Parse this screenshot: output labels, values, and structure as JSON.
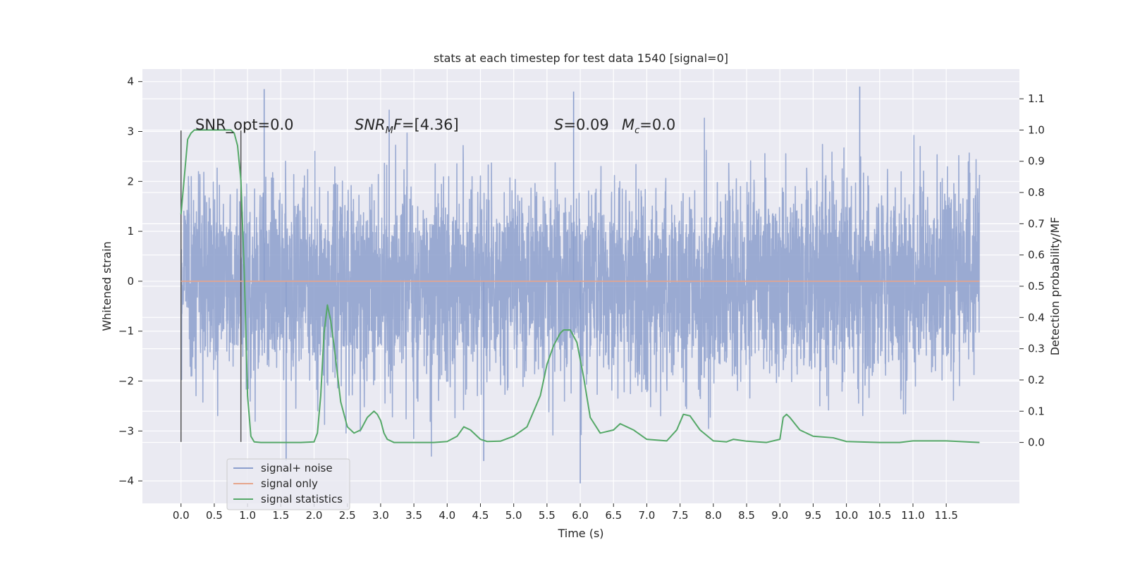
{
  "chart_data": {
    "type": "line",
    "title": "stats at each timestep for test data 1540 [signal=0]",
    "xlabel": "Time (s)",
    "ylabel": "Whitened strain",
    "y2label": "Detection probability/MF",
    "xlim": [
      -0.58,
      12.6
    ],
    "ylim": [
      -4.45,
      4.25
    ],
    "y2lim": [
      -0.195,
      1.195
    ],
    "grid": true,
    "legend_position": "lower-left",
    "x_ticks": [
      0.0,
      0.5,
      1.0,
      1.5,
      2.0,
      2.5,
      3.0,
      3.5,
      4.0,
      4.5,
      5.0,
      5.5,
      6.0,
      6.5,
      7.0,
      7.5,
      8.0,
      8.5,
      9.0,
      9.5,
      10.0,
      10.5,
      11.0,
      11.5
    ],
    "x_tick_labels": [
      "0.0",
      "0.5",
      "1.0",
      "1.5",
      "2.0",
      "2.5",
      "3.0",
      "3.5",
      "4.0",
      "4.5",
      "5.0",
      "5.5",
      "6.0",
      "6.5",
      "7.0",
      "7.5",
      "8.0",
      "8.5",
      "9.0",
      "9.5",
      "10.0",
      "10.5",
      "11.0",
      "11.5"
    ],
    "y_ticks": [
      4,
      3,
      2,
      1,
      0,
      -1,
      -2,
      -3,
      -4
    ],
    "y_tick_labels": [
      "4",
      "3",
      "2",
      "1",
      "0",
      "−1",
      "−2",
      "−3",
      "−4"
    ],
    "y2_ticks": [
      1.1,
      1.0,
      0.9,
      0.8,
      0.7,
      0.6,
      0.5,
      0.4,
      0.3,
      0.2,
      0.1,
      0.0
    ],
    "y2_tick_labels": [
      "1.1",
      "1.0",
      "0.9",
      "0.8",
      "0.7",
      "0.6",
      "0.5",
      "0.4",
      "0.3",
      "0.2",
      "0.1",
      "0.0"
    ],
    "annotations": {
      "snr_opt": "SNR_opt=0.0",
      "snr_mf_italic": "SNR",
      "snr_mf_sub": "M",
      "snr_mf_italic2": "F",
      "snr_mf_value": "=[4.36]",
      "s_italic": "S",
      "s_value": "=0.09",
      "mc_italic": "M",
      "mc_sub": "c",
      "mc_value": "=0.0"
    },
    "vertical_markers": [
      {
        "x": 0.0,
        "y_range": [
          -3.22,
          3.02
        ],
        "color": "#555555"
      },
      {
        "x": 0.9,
        "y_range": [
          -3.22,
          3.02
        ],
        "color": "#555555"
      }
    ],
    "series": [
      {
        "name": "signal+ noise",
        "color": "#8c9fcd",
        "x_range": [
          0.0,
          12.0
        ],
        "amplitude_std": 1.0,
        "note_peaks": [
          [
            1.25,
            3.85
          ],
          [
            5.9,
            3.8
          ],
          [
            10.2,
            3.9
          ],
          [
            6.0,
            -4.05
          ],
          [
            1.58,
            -3.6
          ],
          [
            4.55,
            -3.6
          ]
        ]
      },
      {
        "name": "signal only",
        "color": "#e6a58c",
        "x": [
          0.0,
          12.0
        ],
        "y": [
          0.0,
          0.0
        ]
      },
      {
        "name": "signal statistics",
        "color": "#55a868",
        "axis": "right",
        "x": [
          0.0,
          0.05,
          0.1,
          0.15,
          0.2,
          0.3,
          0.4,
          0.5,
          0.6,
          0.7,
          0.75,
          0.8,
          0.85,
          0.9,
          0.95,
          1.0,
          1.05,
          1.1,
          1.2,
          1.4,
          1.6,
          1.8,
          2.0,
          2.05,
          2.1,
          2.15,
          2.2,
          2.25,
          2.3,
          2.35,
          2.4,
          2.5,
          2.6,
          2.7,
          2.8,
          2.9,
          2.95,
          3.0,
          3.05,
          3.1,
          3.2,
          3.3,
          3.5,
          3.8,
          4.0,
          4.15,
          4.25,
          4.35,
          4.45,
          4.5,
          4.6,
          4.8,
          5.0,
          5.2,
          5.4,
          5.5,
          5.6,
          5.7,
          5.75,
          5.85,
          5.95,
          6.05,
          6.15,
          6.3,
          6.5,
          6.6,
          6.8,
          7.0,
          7.3,
          7.45,
          7.55,
          7.65,
          7.8,
          8.0,
          8.2,
          8.3,
          8.5,
          8.8,
          9.0,
          9.05,
          9.1,
          9.15,
          9.3,
          9.5,
          9.8,
          10.0,
          10.5,
          10.8,
          11.0,
          11.5,
          12.0
        ],
        "y": [
          0.73,
          0.85,
          0.97,
          0.99,
          1.0,
          1.0,
          1.0,
          1.0,
          1.0,
          1.0,
          1.0,
          0.99,
          0.95,
          0.84,
          0.55,
          0.15,
          0.02,
          0.002,
          0.0,
          0.0,
          0.0,
          0.0,
          0.002,
          0.03,
          0.15,
          0.35,
          0.44,
          0.39,
          0.31,
          0.22,
          0.13,
          0.05,
          0.03,
          0.04,
          0.08,
          0.1,
          0.09,
          0.07,
          0.03,
          0.01,
          0.0,
          0.0,
          0.0,
          0.0,
          0.003,
          0.02,
          0.05,
          0.04,
          0.02,
          0.01,
          0.003,
          0.004,
          0.02,
          0.05,
          0.15,
          0.25,
          0.31,
          0.35,
          0.36,
          0.36,
          0.32,
          0.21,
          0.08,
          0.03,
          0.04,
          0.06,
          0.04,
          0.01,
          0.005,
          0.04,
          0.09,
          0.085,
          0.04,
          0.005,
          0.002,
          0.01,
          0.004,
          0.0,
          0.01,
          0.08,
          0.09,
          0.08,
          0.04,
          0.02,
          0.015,
          0.003,
          0.0,
          0.0,
          0.005,
          0.005,
          0.0
        ]
      }
    ]
  }
}
